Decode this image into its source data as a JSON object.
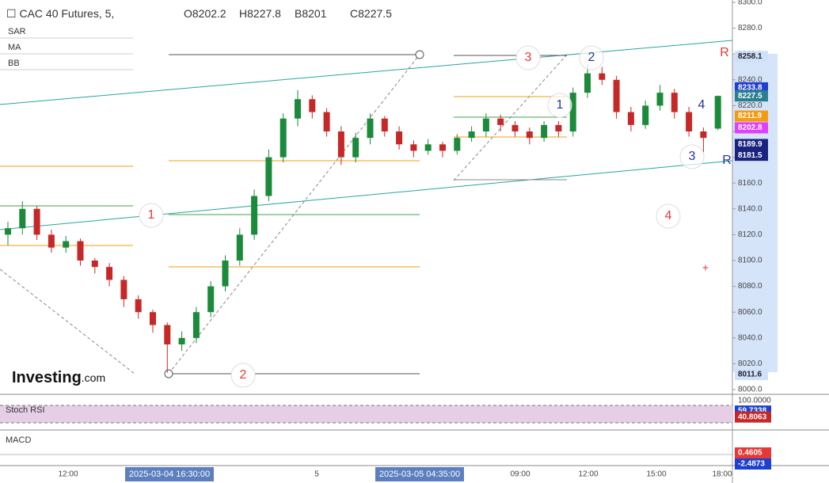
{
  "chart_data": {
    "type": "candlestick",
    "title": "CAC 40 Futures, 5,",
    "ohlc": [
      {
        "label": "O",
        "value": 8202.2
      },
      {
        "label": "H",
        "value": 8227.8
      },
      {
        "label": "B",
        "value": 8201.0
      },
      {
        "label": "C",
        "value": 8227.5
      }
    ],
    "indicators": [
      "SAR",
      "MA",
      "BB"
    ],
    "up_color": "#1b8a3a",
    "down_color": "#c62828",
    "open": [
      8120,
      8125,
      8140,
      8120,
      8110,
      8115,
      8100,
      8095,
      8085,
      8070,
      8060,
      8050,
      8035,
      8040,
      8060,
      8080,
      8100,
      8120,
      8150,
      8180,
      8210,
      8225,
      8215,
      8200,
      8180,
      8195,
      8210,
      8200,
      8190,
      8185,
      8190,
      8185,
      8195,
      8200,
      8210,
      8205,
      8200,
      8195,
      8205,
      8200,
      8230,
      8245,
      8240,
      8215,
      8205,
      8220,
      8230,
      8215,
      8200,
      8202.2
    ],
    "high": [
      8130,
      8146,
      8142,
      8124,
      8119,
      8117,
      8102,
      8098,
      8088,
      8073,
      8062,
      8052,
      8045,
      8064,
      8084,
      8104,
      8125,
      8155,
      8186,
      8214,
      8232,
      8228,
      8218,
      8204,
      8199,
      8214,
      8212,
      8204,
      8193,
      8194,
      8192,
      8198,
      8204,
      8214,
      8213,
      8208,
      8203,
      8208,
      8208,
      8234,
      8252,
      8250,
      8243,
      8219,
      8224,
      8236,
      8233,
      8219,
      8203,
      8227.8
    ],
    "low": [
      8112,
      8120,
      8116,
      8106,
      8106,
      8096,
      8090,
      8080,
      8064,
      8055,
      8044,
      8013,
      8030,
      8036,
      8056,
      8076,
      8096,
      8116,
      8146,
      8176,
      8204,
      8210,
      8196,
      8174,
      8176,
      8190,
      8196,
      8186,
      8180,
      8182,
      8180,
      8182,
      8192,
      8196,
      8200,
      8196,
      8190,
      8192,
      8196,
      8196,
      8226,
      8236,
      8210,
      8200,
      8202,
      8216,
      8210,
      8196,
      8184,
      8201.0
    ],
    "close": [
      8125,
      8140,
      8120,
      8110,
      8115,
      8100,
      8095,
      8085,
      8070,
      8060,
      8050,
      8035,
      8040,
      8060,
      8080,
      8100,
      8120,
      8150,
      8180,
      8210,
      8225,
      8215,
      8200,
      8180,
      8195,
      8210,
      8200,
      8190,
      8185,
      8190,
      8185,
      8195,
      8200,
      8210,
      8205,
      8200,
      8195,
      8205,
      8200,
      8230,
      8245,
      8240,
      8215,
      8205,
      8220,
      8230,
      8215,
      8200,
      8195,
      8227.5
    ],
    "ylim": [
      8000,
      8300
    ],
    "yticks": [
      {
        "value": 8000,
        "label": "8000.0"
      },
      {
        "value": 8020,
        "label": "8020.0"
      },
      {
        "value": 8040,
        "label": "8040.0"
      },
      {
        "value": 8060,
        "label": "8060.0"
      },
      {
        "value": 8080,
        "label": "8080.0"
      },
      {
        "value": 8100,
        "label": "8100.0"
      },
      {
        "value": 8120,
        "label": "8120.0"
      },
      {
        "value": 8140,
        "label": "8140.0"
      },
      {
        "value": 8160,
        "label": "8160.0"
      },
      {
        "value": 8180,
        "label": "8180.0"
      },
      {
        "value": 8200,
        "label": "8200.0"
      },
      {
        "value": 8220,
        "label": "8220.0"
      },
      {
        "value": 8240,
        "label": "8240.0"
      },
      {
        "value": 8260,
        "label": "8260.0"
      },
      {
        "value": 8280,
        "label": "8280.0"
      },
      {
        "value": 8300,
        "label": "8300.0"
      }
    ],
    "price_labels": [
      {
        "value": 8258.1,
        "color": "#cfe0fa"
      },
      {
        "value": 8233.8,
        "color": "#1e3fd0"
      },
      {
        "value": 8227.5,
        "color": "#2a7f8f"
      },
      {
        "value": 8211.9,
        "color": "#f39c12"
      },
      {
        "value": 8202.8,
        "color": "#e040fb"
      },
      {
        "value": 8189.9,
        "color": "#1a237e"
      },
      {
        "value": 8181.5,
        "color": "#1a237e"
      },
      {
        "value": 8011.6,
        "color": "#cfe0fa"
      }
    ],
    "stoch_title": "Stoch RSI",
    "stoch_labels": [
      {
        "value": 100,
        "label": "100.0000"
      },
      {
        "value": 59.7338,
        "color": "#1e3fd0"
      },
      {
        "value": 40.8063,
        "color": "#c62828"
      }
    ],
    "macd_title": "MACD",
    "macd_labels": [
      {
        "value": 0.4605,
        "color": "#e53935"
      },
      {
        "value": -2.4873,
        "color": "#1e3fd0"
      }
    ],
    "x_labels": [
      "12:00",
      "2025-03-04 16:30:00",
      "5",
      "2025-03-05 04:35:00",
      "09:00",
      "12:00",
      "15:00",
      "18:00"
    ],
    "red_waves": [
      "1",
      "2",
      "3",
      "4",
      "R"
    ],
    "blue_waves": [
      "1",
      "2",
      "3",
      "4",
      "R"
    ],
    "logo": [
      "Investing",
      ".com"
    ]
  }
}
